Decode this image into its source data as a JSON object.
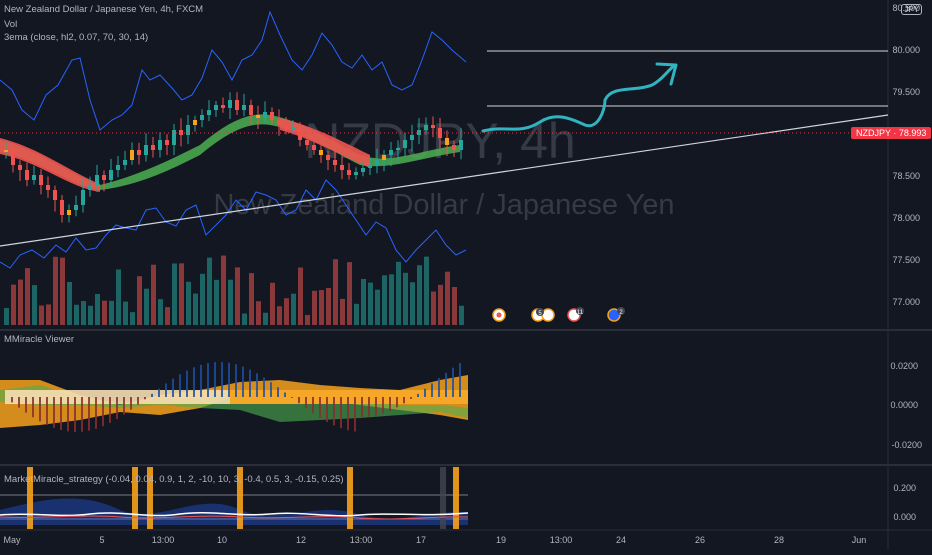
{
  "header": {
    "title": "New Zealand Dollar / Japanese Yen, 4h, FXCM",
    "vol_label": "Vol",
    "ema_label": "3ema (close, hl2, 0.07, 70, 30, 14)",
    "currency_badge": "JPY"
  },
  "watermark": {
    "symbol": "NZDJPY, 4h",
    "name": "New Zealand Dollar / Japanese Yen"
  },
  "price_axis": {
    "ticks": [
      "80.500",
      "80.000",
      "79.500",
      "79.000",
      "78.500",
      "78.000",
      "77.500",
      "77.000"
    ],
    "current_label": "NZDJPY · 78.993",
    "current_value": 78.993
  },
  "indicator1": {
    "name": "MMiracle Viewer",
    "ticks": [
      "0.0200",
      "0.0000",
      "-0.0200"
    ]
  },
  "indicator2": {
    "name": "MarketMiracle_strategy (-0.04, 0.04, 0.9, 1, 2, -10, 10, 3, -0.4, 0.5, 3, -0.15, 0.25)",
    "ticks": [
      "0.200",
      "0.000"
    ]
  },
  "time_axis": {
    "ticks": [
      "May",
      "5",
      "13:00",
      "10",
      "12",
      "13:00",
      "17",
      "19",
      "13:00",
      "24",
      "26",
      "28",
      "Jun"
    ]
  },
  "event_badges": [
    "5",
    "11",
    "2"
  ],
  "colors": {
    "background": "#131722",
    "up": "#26a69a",
    "down": "#ef5350",
    "accent_orange": "#f7a21b",
    "projection": "#2fb4c0"
  }
}
